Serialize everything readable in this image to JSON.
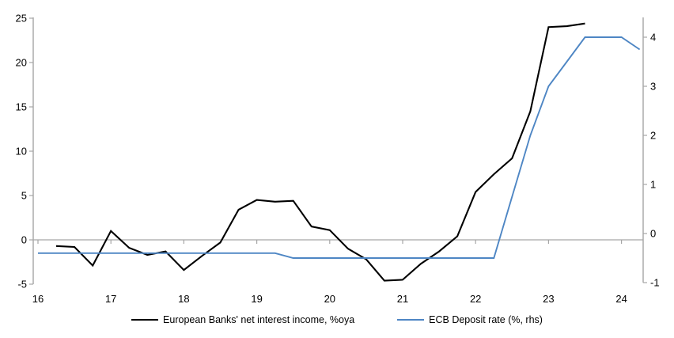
{
  "chart_data": {
    "type": "line",
    "title": "",
    "xlabel": "",
    "ylabel_left": "",
    "ylabel_right": "",
    "grid": "zero-gridline-only",
    "legend_position": "bottom-center",
    "axis_color": "#a6a6a6",
    "x_axis": {
      "ticks": [
        16,
        17,
        18,
        19,
        20,
        21,
        22,
        23,
        24
      ],
      "min": 15.93,
      "max": 24.3
    },
    "left_axis": {
      "ticks": [
        25,
        20,
        15,
        10,
        5,
        0,
        -5
      ],
      "min": -5,
      "max": 25
    },
    "right_axis": {
      "ticks": [
        4,
        3,
        2,
        1,
        0,
        -1
      ],
      "min": -1,
      "max": 4.4
    },
    "series": [
      {
        "name": "European Banks' net interest income, %oya",
        "axis": "left",
        "color": "#000000",
        "x": [
          16.25,
          16.5,
          16.75,
          17.0,
          17.25,
          17.5,
          17.75,
          18.0,
          18.25,
          18.5,
          18.75,
          19.0,
          19.25,
          19.5,
          19.75,
          20.0,
          20.25,
          20.5,
          20.75,
          21.0,
          21.25,
          21.5,
          21.75,
          22.0,
          22.25,
          22.5,
          22.75,
          23.0,
          23.25,
          23.5
        ],
        "values": [
          -0.7,
          -0.8,
          -2.9,
          1.0,
          -0.9,
          -1.7,
          -1.3,
          -3.4,
          -1.8,
          -0.3,
          3.4,
          4.5,
          4.3,
          4.4,
          1.5,
          1.1,
          -1.0,
          -2.2,
          -4.6,
          -4.5,
          -2.7,
          -1.3,
          0.4,
          5.4,
          7.4,
          9.2,
          14.5,
          24.0,
          24.1,
          24.4
        ]
      },
      {
        "name": "ECB Deposit rate (%, rhs)",
        "axis": "right",
        "color": "#4e86c4",
        "x": [
          16.0,
          16.25,
          16.5,
          16.75,
          17.0,
          17.25,
          17.5,
          17.75,
          18.0,
          18.25,
          18.5,
          18.75,
          19.0,
          19.25,
          19.5,
          19.75,
          20.0,
          20.25,
          20.5,
          20.75,
          21.0,
          21.25,
          21.5,
          21.75,
          22.0,
          22.25,
          22.5,
          22.75,
          23.0,
          23.25,
          23.5,
          23.75,
          24.0,
          24.25
        ],
        "values": [
          -0.4,
          -0.4,
          -0.4,
          -0.4,
          -0.4,
          -0.4,
          -0.4,
          -0.4,
          -0.4,
          -0.4,
          -0.4,
          -0.4,
          -0.4,
          -0.4,
          -0.5,
          -0.5,
          -0.5,
          -0.5,
          -0.5,
          -0.5,
          -0.5,
          -0.5,
          -0.5,
          -0.5,
          -0.5,
          -0.5,
          0.75,
          2.0,
          3.0,
          3.5,
          4.0,
          4.0,
          4.0,
          3.75
        ]
      }
    ]
  },
  "legend": {
    "items": [
      {
        "label": "European Banks' net interest income, %oya",
        "color": "#000000"
      },
      {
        "label": "ECB Deposit rate (%, rhs)",
        "color": "#4e86c4"
      }
    ]
  }
}
